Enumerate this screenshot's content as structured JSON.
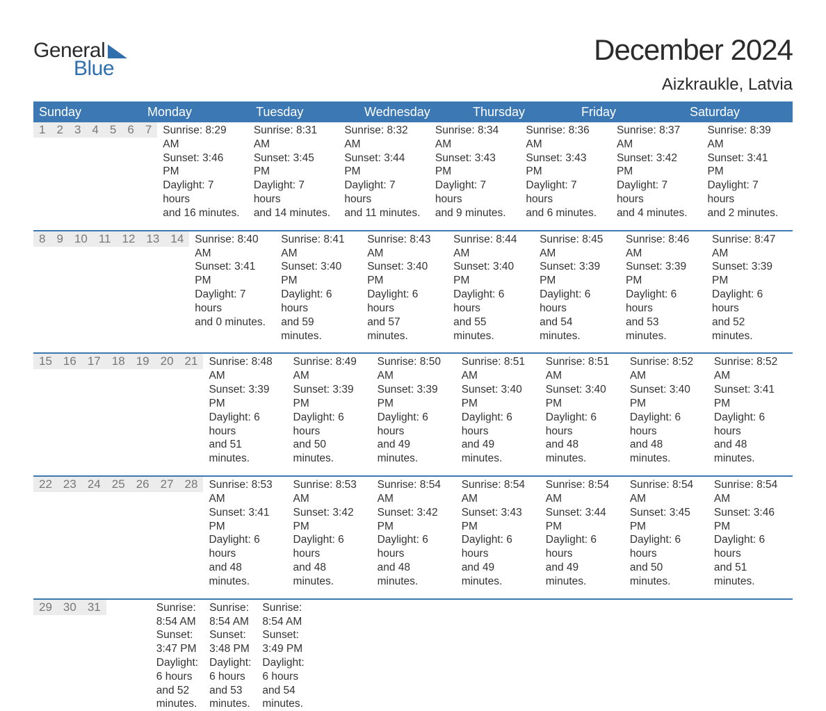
{
  "logo": {
    "word1": "General",
    "word2": "Blue"
  },
  "title": "December 2024",
  "location": "Aizkraukle, Latvia",
  "colors": {
    "header_bg": "#3c78b4",
    "header_text": "#ffffff",
    "row_border": "#3c78b4",
    "daynum_bg": "#ececec",
    "daynum_text": "#777777",
    "body_text": "#333333",
    "logo_dark": "#2b2b2b",
    "logo_blue": "#2f6fae",
    "background": "#ffffff"
  },
  "day_names": [
    "Sunday",
    "Monday",
    "Tuesday",
    "Wednesday",
    "Thursday",
    "Friday",
    "Saturday"
  ],
  "weeks": [
    [
      {
        "day": "1",
        "sunrise": "Sunrise: 8:29 AM",
        "sunset": "Sunset: 3:46 PM",
        "dl1": "Daylight: 7 hours",
        "dl2": "and 16 minutes."
      },
      {
        "day": "2",
        "sunrise": "Sunrise: 8:31 AM",
        "sunset": "Sunset: 3:45 PM",
        "dl1": "Daylight: 7 hours",
        "dl2": "and 14 minutes."
      },
      {
        "day": "3",
        "sunrise": "Sunrise: 8:32 AM",
        "sunset": "Sunset: 3:44 PM",
        "dl1": "Daylight: 7 hours",
        "dl2": "and 11 minutes."
      },
      {
        "day": "4",
        "sunrise": "Sunrise: 8:34 AM",
        "sunset": "Sunset: 3:43 PM",
        "dl1": "Daylight: 7 hours",
        "dl2": "and 9 minutes."
      },
      {
        "day": "5",
        "sunrise": "Sunrise: 8:36 AM",
        "sunset": "Sunset: 3:43 PM",
        "dl1": "Daylight: 7 hours",
        "dl2": "and 6 minutes."
      },
      {
        "day": "6",
        "sunrise": "Sunrise: 8:37 AM",
        "sunset": "Sunset: 3:42 PM",
        "dl1": "Daylight: 7 hours",
        "dl2": "and 4 minutes."
      },
      {
        "day": "7",
        "sunrise": "Sunrise: 8:39 AM",
        "sunset": "Sunset: 3:41 PM",
        "dl1": "Daylight: 7 hours",
        "dl2": "and 2 minutes."
      }
    ],
    [
      {
        "day": "8",
        "sunrise": "Sunrise: 8:40 AM",
        "sunset": "Sunset: 3:41 PM",
        "dl1": "Daylight: 7 hours",
        "dl2": "and 0 minutes."
      },
      {
        "day": "9",
        "sunrise": "Sunrise: 8:41 AM",
        "sunset": "Sunset: 3:40 PM",
        "dl1": "Daylight: 6 hours",
        "dl2": "and 59 minutes."
      },
      {
        "day": "10",
        "sunrise": "Sunrise: 8:43 AM",
        "sunset": "Sunset: 3:40 PM",
        "dl1": "Daylight: 6 hours",
        "dl2": "and 57 minutes."
      },
      {
        "day": "11",
        "sunrise": "Sunrise: 8:44 AM",
        "sunset": "Sunset: 3:40 PM",
        "dl1": "Daylight: 6 hours",
        "dl2": "and 55 minutes."
      },
      {
        "day": "12",
        "sunrise": "Sunrise: 8:45 AM",
        "sunset": "Sunset: 3:39 PM",
        "dl1": "Daylight: 6 hours",
        "dl2": "and 54 minutes."
      },
      {
        "day": "13",
        "sunrise": "Sunrise: 8:46 AM",
        "sunset": "Sunset: 3:39 PM",
        "dl1": "Daylight: 6 hours",
        "dl2": "and 53 minutes."
      },
      {
        "day": "14",
        "sunrise": "Sunrise: 8:47 AM",
        "sunset": "Sunset: 3:39 PM",
        "dl1": "Daylight: 6 hours",
        "dl2": "and 52 minutes."
      }
    ],
    [
      {
        "day": "15",
        "sunrise": "Sunrise: 8:48 AM",
        "sunset": "Sunset: 3:39 PM",
        "dl1": "Daylight: 6 hours",
        "dl2": "and 51 minutes."
      },
      {
        "day": "16",
        "sunrise": "Sunrise: 8:49 AM",
        "sunset": "Sunset: 3:39 PM",
        "dl1": "Daylight: 6 hours",
        "dl2": "and 50 minutes."
      },
      {
        "day": "17",
        "sunrise": "Sunrise: 8:50 AM",
        "sunset": "Sunset: 3:39 PM",
        "dl1": "Daylight: 6 hours",
        "dl2": "and 49 minutes."
      },
      {
        "day": "18",
        "sunrise": "Sunrise: 8:51 AM",
        "sunset": "Sunset: 3:40 PM",
        "dl1": "Daylight: 6 hours",
        "dl2": "and 49 minutes."
      },
      {
        "day": "19",
        "sunrise": "Sunrise: 8:51 AM",
        "sunset": "Sunset: 3:40 PM",
        "dl1": "Daylight: 6 hours",
        "dl2": "and 48 minutes."
      },
      {
        "day": "20",
        "sunrise": "Sunrise: 8:52 AM",
        "sunset": "Sunset: 3:40 PM",
        "dl1": "Daylight: 6 hours",
        "dl2": "and 48 minutes."
      },
      {
        "day": "21",
        "sunrise": "Sunrise: 8:52 AM",
        "sunset": "Sunset: 3:41 PM",
        "dl1": "Daylight: 6 hours",
        "dl2": "and 48 minutes."
      }
    ],
    [
      {
        "day": "22",
        "sunrise": "Sunrise: 8:53 AM",
        "sunset": "Sunset: 3:41 PM",
        "dl1": "Daylight: 6 hours",
        "dl2": "and 48 minutes."
      },
      {
        "day": "23",
        "sunrise": "Sunrise: 8:53 AM",
        "sunset": "Sunset: 3:42 PM",
        "dl1": "Daylight: 6 hours",
        "dl2": "and 48 minutes."
      },
      {
        "day": "24",
        "sunrise": "Sunrise: 8:54 AM",
        "sunset": "Sunset: 3:42 PM",
        "dl1": "Daylight: 6 hours",
        "dl2": "and 48 minutes."
      },
      {
        "day": "25",
        "sunrise": "Sunrise: 8:54 AM",
        "sunset": "Sunset: 3:43 PM",
        "dl1": "Daylight: 6 hours",
        "dl2": "and 49 minutes."
      },
      {
        "day": "26",
        "sunrise": "Sunrise: 8:54 AM",
        "sunset": "Sunset: 3:44 PM",
        "dl1": "Daylight: 6 hours",
        "dl2": "and 49 minutes."
      },
      {
        "day": "27",
        "sunrise": "Sunrise: 8:54 AM",
        "sunset": "Sunset: 3:45 PM",
        "dl1": "Daylight: 6 hours",
        "dl2": "and 50 minutes."
      },
      {
        "day": "28",
        "sunrise": "Sunrise: 8:54 AM",
        "sunset": "Sunset: 3:46 PM",
        "dl1": "Daylight: 6 hours",
        "dl2": "and 51 minutes."
      }
    ],
    [
      {
        "day": "29",
        "sunrise": "Sunrise: 8:54 AM",
        "sunset": "Sunset: 3:47 PM",
        "dl1": "Daylight: 6 hours",
        "dl2": "and 52 minutes."
      },
      {
        "day": "30",
        "sunrise": "Sunrise: 8:54 AM",
        "sunset": "Sunset: 3:48 PM",
        "dl1": "Daylight: 6 hours",
        "dl2": "and 53 minutes."
      },
      {
        "day": "31",
        "sunrise": "Sunrise: 8:54 AM",
        "sunset": "Sunset: 3:49 PM",
        "dl1": "Daylight: 6 hours",
        "dl2": "and 54 minutes."
      },
      null,
      null,
      null,
      null
    ]
  ]
}
